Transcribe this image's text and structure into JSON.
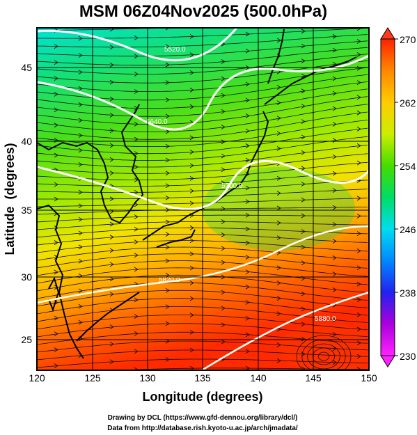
{
  "title": "MSM 06Z04Nov2025 (500.0hPa)",
  "x_axis": {
    "label": "Longitude (degrees)",
    "ticks": [
      "120",
      "125",
      "130",
      "135",
      "140",
      "145",
      "150"
    ],
    "range": [
      120,
      150
    ]
  },
  "y_axis": {
    "label": "Latitude  (degrees)",
    "ticks": [
      "25",
      "30",
      "35",
      "40",
      "45"
    ],
    "range": [
      22.5,
      47.5
    ]
  },
  "colorbar": {
    "ticks": [
      "230",
      "238",
      "246",
      "254",
      "262",
      "270"
    ],
    "range": [
      230,
      270
    ],
    "colors": [
      "#ff22ff",
      "#aa00dd",
      "#2222ee",
      "#0088ff",
      "#00ddee",
      "#00dd66",
      "#44dd00",
      "#ccee00",
      "#ffcc00",
      "#ff8800",
      "#ff2200"
    ]
  },
  "contours": [
    {
      "label": "5520.0"
    },
    {
      "label": "5640.0"
    },
    {
      "label": "5700.0"
    },
    {
      "label": "5820.0"
    },
    {
      "label": "5880.0"
    }
  ],
  "credits": [
    "Drawing by DCL (https://www.gfd-dennou.org/library/dcl/)",
    "Data from http://database.rish.kyoto-u.ac.jp/arch/jmadata/"
  ]
}
